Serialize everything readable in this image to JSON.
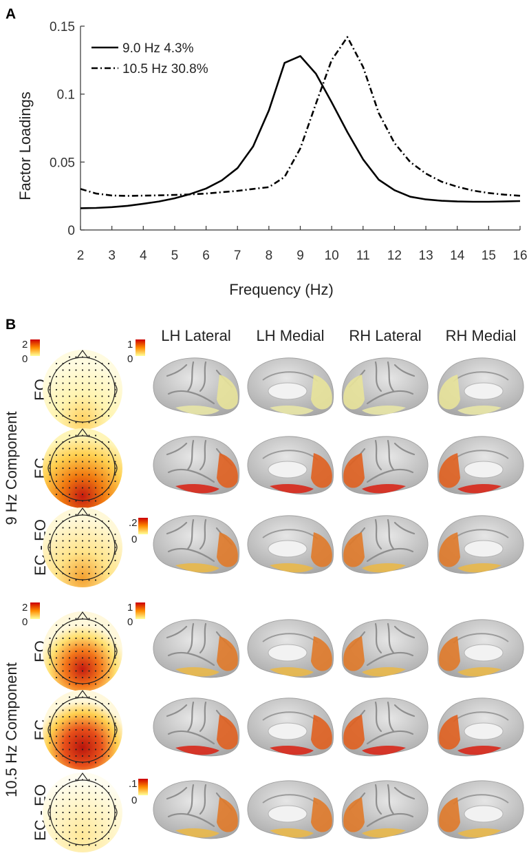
{
  "panel_a": {
    "label": "A",
    "chart_data": {
      "type": "line",
      "xlabel": "Frequency (Hz)",
      "ylabel": "Factor Loadings",
      "xlim": [
        2,
        16
      ],
      "ylim": [
        0,
        0.15
      ],
      "xticks": [
        "2",
        "3",
        "4",
        "5",
        "6",
        "7",
        "8",
        "9",
        "10",
        "11",
        "12",
        "13",
        "14",
        "15",
        "16"
      ],
      "yticks": [
        "0",
        "0.05",
        "0.1",
        "0.15"
      ],
      "x": [
        2,
        2.5,
        3,
        3.5,
        4,
        4.5,
        5,
        5.5,
        6,
        6.5,
        7,
        7.5,
        8,
        8.5,
        9,
        9.5,
        10,
        10.5,
        11,
        11.5,
        12,
        12.5,
        13,
        13.5,
        14,
        14.5,
        15,
        15.5,
        16
      ],
      "series": [
        {
          "name": "9.0 Hz 4.3%",
          "style": "solid",
          "values": [
            0.016,
            0.0162,
            0.0168,
            0.0178,
            0.0193,
            0.021,
            0.0233,
            0.0265,
            0.0305,
            0.0365,
            0.0455,
            0.0615,
            0.088,
            0.123,
            0.128,
            0.115,
            0.094,
            0.072,
            0.052,
            0.037,
            0.0293,
            0.0245,
            0.0225,
            0.0215,
            0.021,
            0.0208,
            0.0208,
            0.021,
            0.0213
          ]
        },
        {
          "name": "10.5 Hz 30.8%",
          "style": "dashdot",
          "values": [
            0.0302,
            0.0268,
            0.0254,
            0.0251,
            0.0253,
            0.0255,
            0.0258,
            0.0262,
            0.0268,
            0.0278,
            0.0288,
            0.0302,
            0.0315,
            0.039,
            0.06,
            0.093,
            0.125,
            0.142,
            0.12,
            0.086,
            0.064,
            0.05,
            0.0415,
            0.0355,
            0.0318,
            0.029,
            0.0272,
            0.026,
            0.0252
          ]
        }
      ],
      "legend_position": "top-left",
      "grid": false
    }
  },
  "panel_b": {
    "label": "B",
    "column_headers": [
      "LH Lateral",
      "LH Medial",
      "RH Lateral",
      "RH Medial"
    ],
    "group_labels": [
      "9 Hz Component",
      "10.5 Hz Component"
    ],
    "row_labels": [
      "EO",
      "EC",
      "EC - EO",
      "EO",
      "EC",
      "EC - EO"
    ],
    "scales": [
      {
        "topo_max": "2",
        "topo_min": "0",
        "cortex_max": "1",
        "cortex_min": "0"
      },
      {
        "cortex_max": ".2",
        "cortex_min": "0"
      },
      {
        "topo_max": "2",
        "topo_min": "0",
        "cortex_max": "1",
        "cortex_min": "0"
      },
      {
        "cortex_max": ".1",
        "cortex_min": "0"
      }
    ],
    "colors": {
      "low": "#ffff99",
      "mid": "#ff8c00",
      "high": "#cc0000",
      "brain": "#c8c8c8"
    }
  }
}
